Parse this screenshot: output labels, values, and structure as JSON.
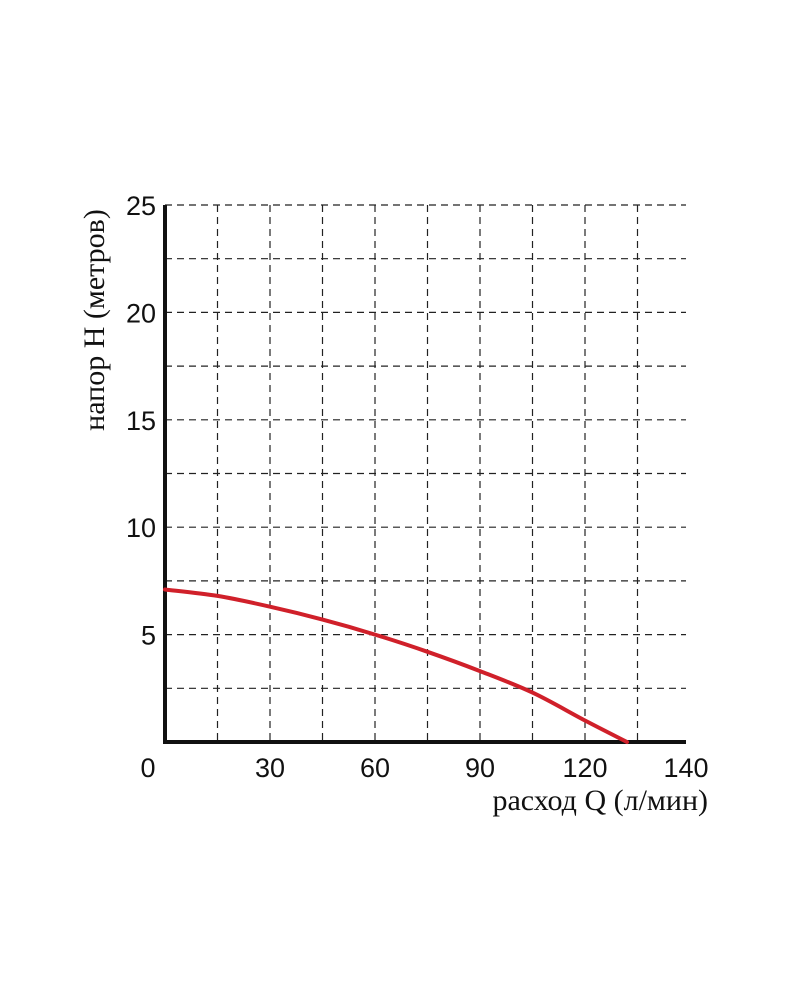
{
  "chart_data": {
    "type": "line",
    "xlabel": "расход Q (л/мин)",
    "ylabel": "напор H (метров)",
    "xlim": [
      0,
      140
    ],
    "ylim": [
      0,
      25
    ],
    "x_ticks": [
      "0",
      "30",
      "60",
      "90",
      "120",
      "140"
    ],
    "y_ticks": [
      "5",
      "10",
      "15",
      "20",
      "25"
    ],
    "grid": true,
    "x_grid_step": 15,
    "y_grid_step": 2.5,
    "series": [
      {
        "color": "#d0202a",
        "x": [
          0,
          15,
          30,
          45,
          60,
          75,
          90,
          105,
          120,
          132
        ],
        "y": [
          7.1,
          6.8,
          6.3,
          5.7,
          5.0,
          4.2,
          3.3,
          2.3,
          1.0,
          0.0
        ]
      }
    ]
  }
}
